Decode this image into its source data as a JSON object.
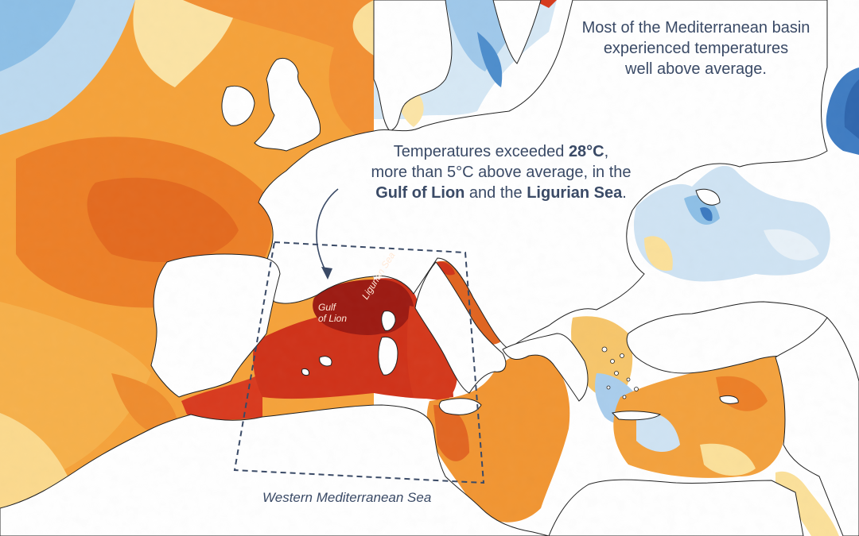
{
  "annotations": {
    "basin": {
      "line1": "Most of the Mediterranean basin",
      "line2": "experienced temperatures",
      "line3": "well above average."
    },
    "gulf": {
      "line1_pre": "Temperatures exceeded ",
      "line1_bold": "28°C",
      "line1_post": ",",
      "line2": "more than 5°C above average, in the",
      "line3_bold1": "Gulf of Lion",
      "line3_mid": " and the ",
      "line3_bold2": "Ligurian Sea",
      "line3_post": "."
    }
  },
  "labels": {
    "region": "Western Mediterranean Sea",
    "gulf_of_lion_line1": "Gulf",
    "gulf_of_lion_line2": "of Lion",
    "ligurian_sea": "Ligurian Sea"
  },
  "colors": {
    "land": "#ffffff",
    "coast": "#222222",
    "hot_extreme": "#a01a12",
    "hot_high": "#d63a1c",
    "warm": "#f08a2a",
    "warm_light": "#f7b24a",
    "neutral_warm": "#fbe09a",
    "cool_light": "#cfe3f3",
    "cool": "#8dbfe6",
    "cold": "#3b79c0",
    "annotation_text": "#3a4a66",
    "box_stroke": "#3a4a66"
  }
}
